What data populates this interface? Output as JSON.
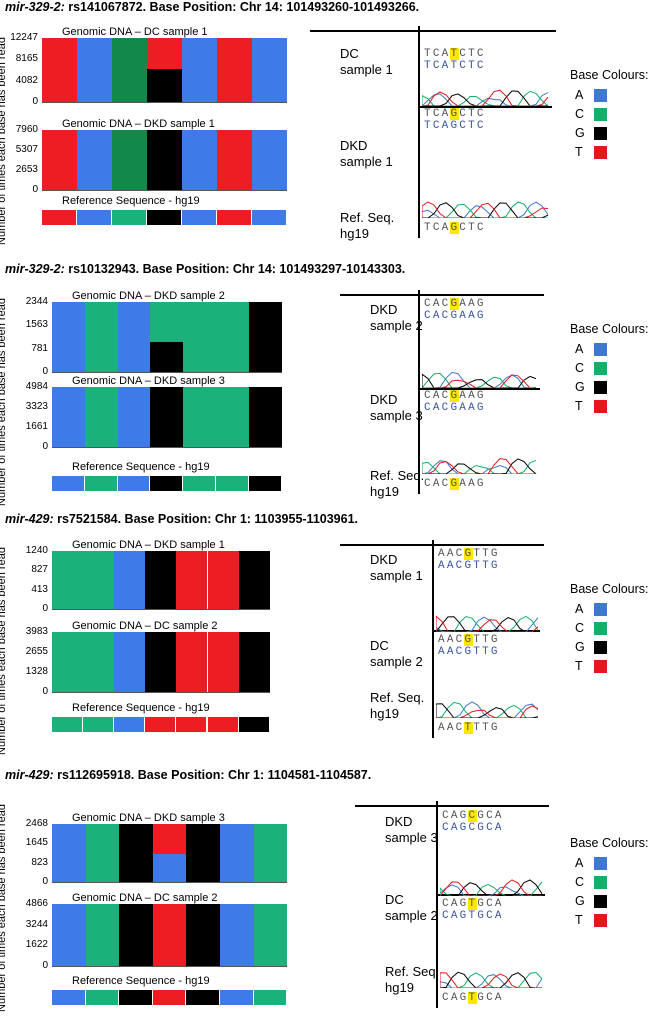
{
  "ylabel": "Number of times each base has been read",
  "legend": {
    "title": "Base Colours:",
    "items": [
      {
        "base": "A",
        "color": "#3e78d2"
      },
      {
        "base": "C",
        "color": "#12b06a"
      },
      {
        "base": "G",
        "color": "#000000"
      },
      {
        "base": "T",
        "color": "#e8161c"
      }
    ]
  },
  "base_colors": {
    "A": "#3f7be8",
    "C": "#1ab27a",
    "G": "#000000",
    "T": "#ee1c23",
    "Cd": "#12894a"
  },
  "panels": [
    {
      "title_mir": "mir-329-2:",
      "title_rest": " rs141067872. Base Position: Chr 14: 101493260-101493266.",
      "chart1": {
        "label": "Genomic DNA – DC sample 1",
        "ticks": [
          "12247",
          "8165",
          "4082",
          "0"
        ],
        "max": 12247,
        "bars": [
          {
            "b": "T",
            "v": 1
          },
          {
            "b": "A",
            "v": 1
          },
          {
            "b": "Cd",
            "v": 1
          },
          {
            "b": "T",
            "v": 1,
            "split": {
              "b": "G",
              "frac": 0.52
            }
          },
          {
            "b": "A",
            "v": 1
          },
          {
            "b": "T",
            "v": 1
          },
          {
            "b": "A",
            "v": 1
          }
        ]
      },
      "chart2": {
        "label": "Genomic DNA – DKD sample 1",
        "ticks": [
          "7960",
          "5307",
          "2653",
          "0"
        ],
        "max": 7960,
        "bars": [
          {
            "b": "T",
            "v": 1
          },
          {
            "b": "A",
            "v": 1
          },
          {
            "b": "Cd",
            "v": 1
          },
          {
            "b": "G",
            "v": 1
          },
          {
            "b": "A",
            "v": 1
          },
          {
            "b": "T",
            "v": 1
          },
          {
            "b": "A",
            "v": 1
          }
        ]
      },
      "ref": {
        "label": "Reference Sequence - hg19",
        "bases": [
          "T",
          "A",
          "C",
          "G",
          "A",
          "T",
          "A"
        ]
      },
      "trace": {
        "s1": {
          "label": "DC\nsample 1",
          "row1": "TCATCTC",
          "row2": "TCATCTC",
          "hl": 3
        },
        "s2": {
          "label": "DKD\nsample 1",
          "row1": "TCAGCTC",
          "row2": "TCAGCTC",
          "hl": 3
        },
        "ref": {
          "label": "Ref. Seq.\nhg19",
          "row": "TCAGCTC",
          "hl": 3
        }
      }
    },
    {
      "title_mir": "mir-329-2:",
      "title_rest": " rs10132943. Base Position: Chr 14: 101493297-10143303.",
      "chart1": {
        "label": "Genomic DNA – DKD sample 2",
        "ticks": [
          "2344",
          "1563",
          "781",
          "0"
        ],
        "max": 2344,
        "bars": [
          {
            "b": "A",
            "v": 1
          },
          {
            "b": "C",
            "v": 1
          },
          {
            "b": "A",
            "v": 1
          },
          {
            "b": "C",
            "v": 1,
            "split": {
              "b": "G",
              "frac": 0.43
            }
          },
          {
            "b": "C",
            "v": 1
          },
          {
            "b": "C",
            "v": 1
          },
          {
            "b": "G",
            "v": 1
          }
        ]
      },
      "chart2": {
        "label": "Genomic DNA – DKD sample 3",
        "ticks": [
          "4984",
          "3323",
          "1661",
          "0"
        ],
        "max": 4984,
        "bars": [
          {
            "b": "A",
            "v": 1
          },
          {
            "b": "C",
            "v": 1
          },
          {
            "b": "A",
            "v": 1
          },
          {
            "b": "G",
            "v": 1
          },
          {
            "b": "C",
            "v": 1
          },
          {
            "b": "C",
            "v": 1
          },
          {
            "b": "G",
            "v": 1
          }
        ]
      },
      "ref": {
        "label": "Reference Sequence - hg19",
        "bases": [
          "A",
          "C",
          "A",
          "G",
          "C",
          "C",
          "G"
        ]
      },
      "trace": {
        "s1": {
          "label": "DKD\nsample 2",
          "row1": "CACGAAG",
          "row2": "CACGAAG",
          "hl": 3
        },
        "s2": {
          "label": "DKD\nsample 3",
          "row1": "CACGAAG",
          "row2": "CACGAAG",
          "hl": 3
        },
        "ref": {
          "label": "Ref. Seq.\nhg19",
          "row": "CACGAAG",
          "hl": 3
        }
      }
    },
    {
      "title_mir": "mir-429:",
      "title_rest": " rs7521584. Base Position: Chr 1: 1103955-1103961.",
      "chart1": {
        "label": "Genomic DNA – DKD sample 1",
        "ticks": [
          "1240",
          "827",
          "413",
          "0"
        ],
        "max": 1240,
        "bars": [
          {
            "b": "C",
            "v": 1
          },
          {
            "b": "C",
            "v": 1
          },
          {
            "b": "A",
            "v": 1
          },
          {
            "b": "G",
            "v": 1
          },
          {
            "b": "T",
            "v": 1
          },
          {
            "b": "T",
            "v": 1
          },
          {
            "b": "G",
            "v": 1
          }
        ]
      },
      "chart2": {
        "label": "Genomic DNA – DC sample 2",
        "ticks": [
          "3983",
          "2655",
          "1328",
          "0"
        ],
        "max": 3983,
        "bars": [
          {
            "b": "C",
            "v": 1
          },
          {
            "b": "C",
            "v": 1
          },
          {
            "b": "A",
            "v": 1
          },
          {
            "b": "G",
            "v": 1
          },
          {
            "b": "T",
            "v": 1
          },
          {
            "b": "T",
            "v": 1
          },
          {
            "b": "G",
            "v": 1
          }
        ]
      },
      "ref": {
        "label": "Reference Sequence - hg19",
        "bases": [
          "C",
          "C",
          "A",
          "T",
          "T",
          "T",
          "G"
        ]
      },
      "trace": {
        "s1": {
          "label": "DKD\nsample 1",
          "row1": "AACGTTG",
          "row2": "AACGTTG",
          "hl": 3
        },
        "s2": {
          "label": "DC\nsample 2",
          "row1": "AACGTTG",
          "row2": "AACGTTG",
          "hl": 3
        },
        "ref": {
          "label": "Ref. Seq.\nhg19",
          "row": "AACTTTG",
          "hl": 3
        }
      }
    },
    {
      "title_mir": "mir-429:",
      "title_rest": " rs112695918. Base Position: Chr 1: 1104581-1104587.",
      "chart1": {
        "label": "Genomic DNA – DKD sample 3",
        "ticks": [
          "2468",
          "1645",
          "823",
          "0"
        ],
        "max": 2468,
        "bars": [
          {
            "b": "A",
            "v": 1
          },
          {
            "b": "C",
            "v": 1
          },
          {
            "b": "G",
            "v": 1
          },
          {
            "b": "T",
            "v": 1,
            "split": {
              "b": "A",
              "frac": 0.48
            }
          },
          {
            "b": "G",
            "v": 1
          },
          {
            "b": "A",
            "v": 1
          },
          {
            "b": "C",
            "v": 1
          }
        ]
      },
      "chart2": {
        "label": "Genomic DNA – DC sample 2",
        "ticks": [
          "4866",
          "3244",
          "1622",
          "0"
        ],
        "max": 4866,
        "bars": [
          {
            "b": "A",
            "v": 1
          },
          {
            "b": "C",
            "v": 1
          },
          {
            "b": "G",
            "v": 1
          },
          {
            "b": "T",
            "v": 1
          },
          {
            "b": "G",
            "v": 1
          },
          {
            "b": "A",
            "v": 1
          },
          {
            "b": "C",
            "v": 1
          }
        ]
      },
      "ref": {
        "label": "Reference Sequence - hg19",
        "bases": [
          "A",
          "C",
          "G",
          "T",
          "G",
          "A",
          "C"
        ]
      },
      "trace": {
        "s1": {
          "label": "DKD\nsample 3",
          "row1": "CAGCGCA",
          "row2": "CAGCGCA",
          "hl": 3
        },
        "s2": {
          "label": "DC\nsample 2",
          "row1": "CAGTGCA",
          "row2": "CAGTGCA",
          "hl": 3
        },
        "ref": {
          "label": "Ref. Seq.\nhg19",
          "row": "CAGTGCA",
          "hl": 3
        }
      }
    }
  ]
}
